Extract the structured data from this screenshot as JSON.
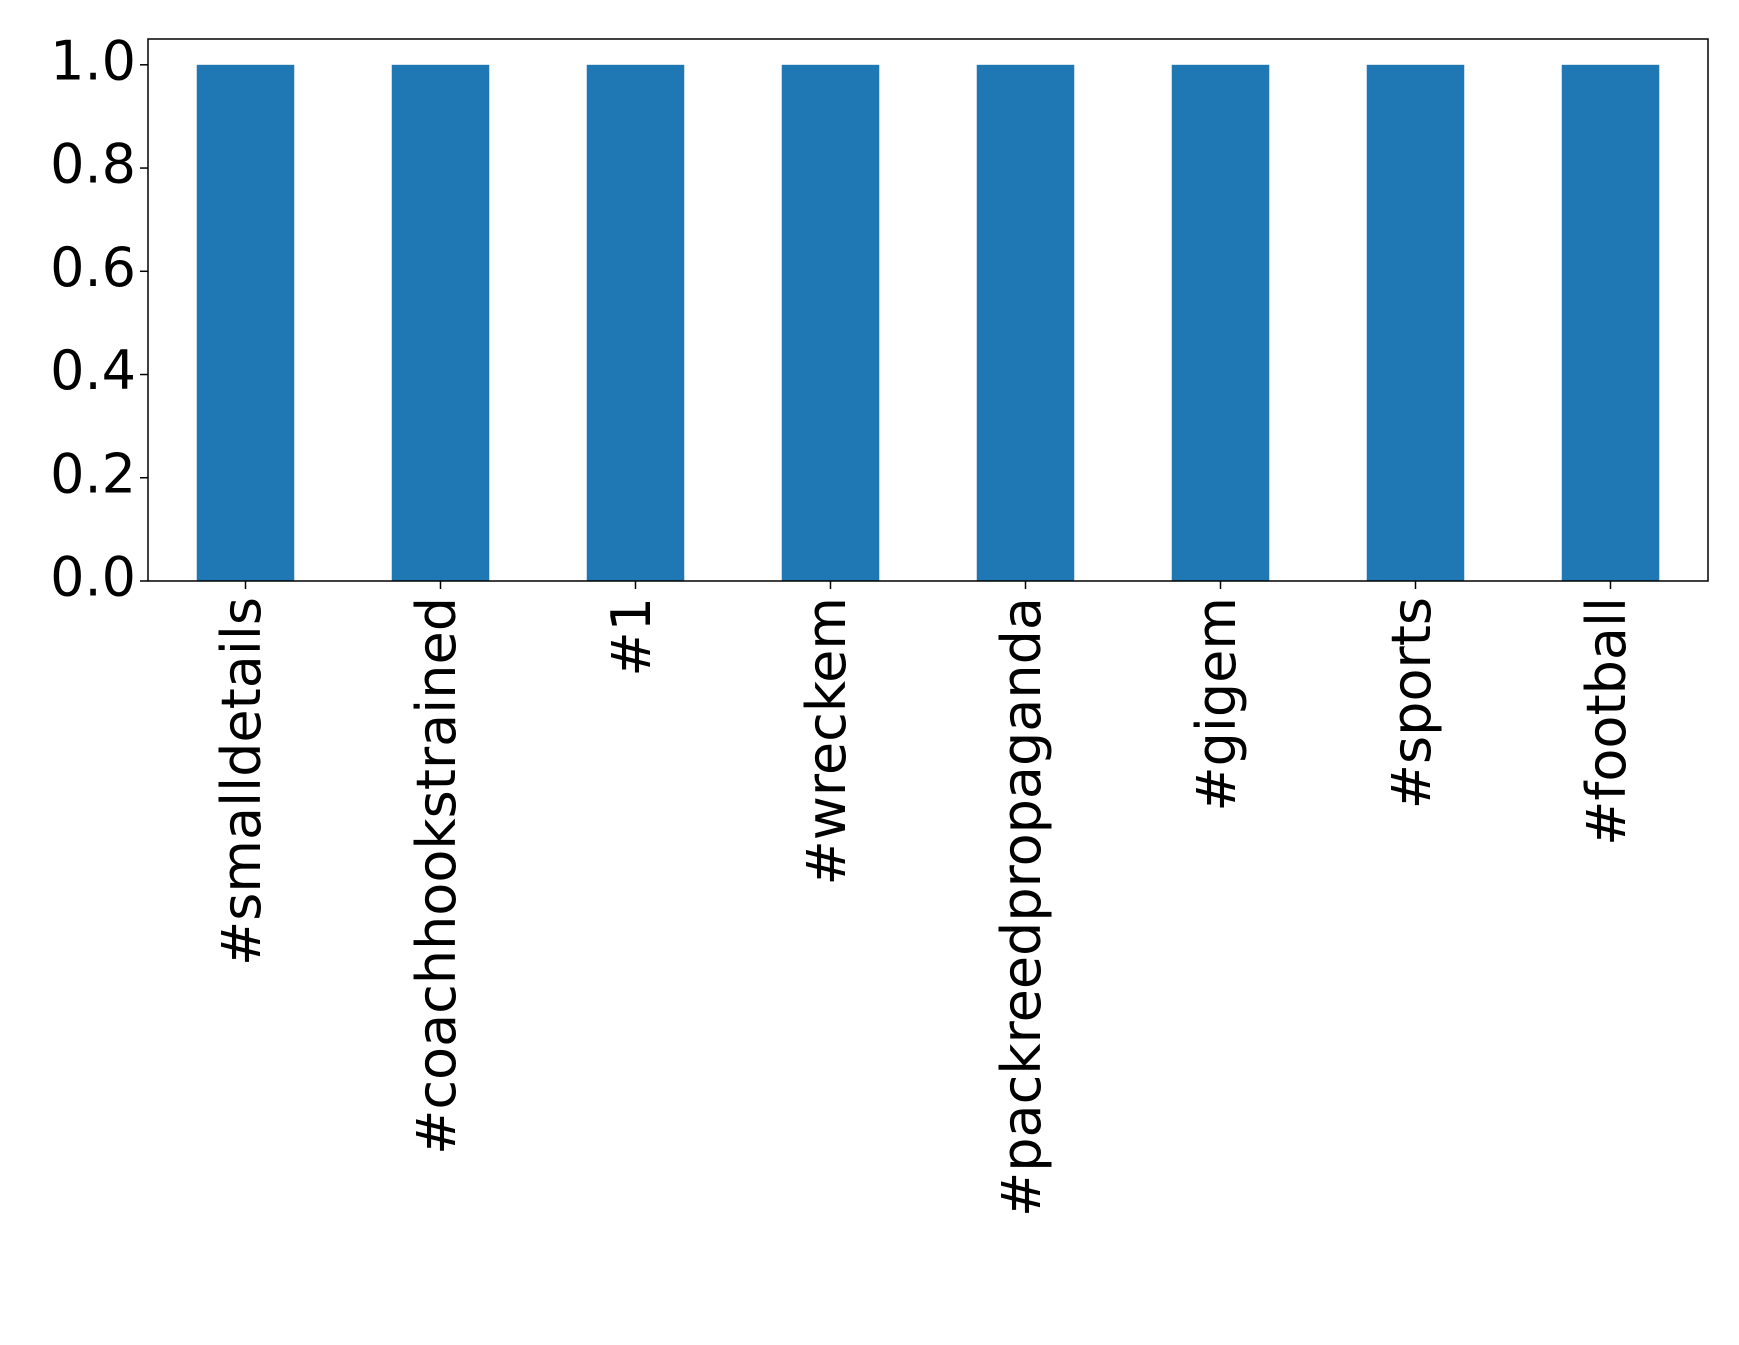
{
  "chart_data": {
    "type": "bar",
    "categories": [
      "#smalldetails",
      "#coachhookstrained",
      "#1",
      "#wreckem",
      "#packreedpropaganda",
      "#gigem",
      "#sports",
      "#football"
    ],
    "values": [
      1,
      1,
      1,
      1,
      1,
      1,
      1,
      1
    ],
    "color": "#1f77b4",
    "ylim": [
      0,
      1.05
    ],
    "yticks": [
      {
        "value": 0,
        "label": "0.0"
      },
      {
        "value": 0.2,
        "label": "0.2"
      },
      {
        "value": 0.4,
        "label": "0.4"
      },
      {
        "value": 0.6,
        "label": "0.6"
      },
      {
        "value": 0.8,
        "label": "0.8"
      },
      {
        "value": 1,
        "label": "1.0"
      }
    ],
    "grid": false
  }
}
